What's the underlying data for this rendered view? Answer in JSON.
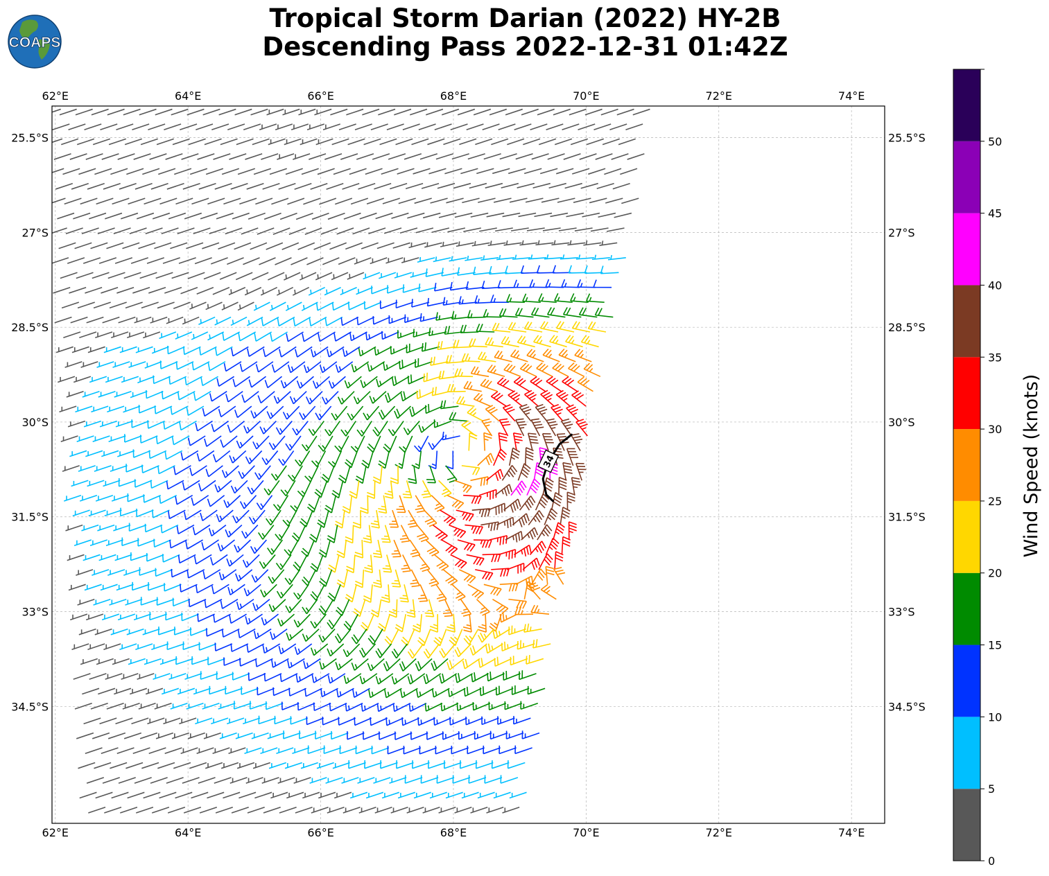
{
  "title": {
    "line1": "Tropical Storm Darian (2022) HY-2B",
    "line2": "Descending Pass 2022-12-31 01:42Z"
  },
  "logo": {
    "text": "COAPS",
    "icon": "globe-icon",
    "ocean_color": "#1f6fb8",
    "land_color": "#5a9a3a"
  },
  "chart_data": {
    "type": "wind-barb-map",
    "lon_range": [
      61.95,
      74.5
    ],
    "lat_range": [
      -36.35,
      -25.0
    ],
    "lon_ticks": [
      62,
      64,
      66,
      68,
      70,
      72,
      74
    ],
    "lat_ticks": [
      -25.5,
      -27,
      -28.5,
      -30,
      -31.5,
      -33,
      -34.5
    ],
    "lon_tick_labels": [
      "62°E",
      "64°E",
      "66°E",
      "68°E",
      "70°E",
      "72°E",
      "74°E"
    ],
    "lat_tick_labels": [
      "25.5°S",
      "27°S",
      "28.5°S",
      "30°S",
      "31.5°S",
      "33°S",
      "34.5°S"
    ],
    "storm_center": {
      "lon": 68.15,
      "lat": -30.45
    },
    "contour": {
      "label": "34",
      "points": [
        [
          69.78,
          -30.2
        ],
        [
          69.6,
          -30.35
        ],
        [
          69.42,
          -30.65
        ],
        [
          69.35,
          -30.9
        ],
        [
          69.4,
          -31.15
        ],
        [
          69.5,
          -31.25
        ]
      ]
    },
    "colorbar": {
      "label": "Wind Speed (knots)",
      "bounds": [
        0,
        5,
        10,
        15,
        20,
        25,
        30,
        35,
        40,
        45,
        50,
        55
      ],
      "tick_labels": [
        "0",
        "5",
        "10",
        "15",
        "20",
        "25",
        "30",
        "35",
        "40",
        "45",
        "50"
      ],
      "colors": [
        "#585858",
        "#00bfff",
        "#0033ff",
        "#008b00",
        "#ffd700",
        "#ff8c00",
        "#ff0000",
        "#7b3a23",
        "#ff00ff",
        "#8b00b6",
        "#2a0059"
      ]
    }
  }
}
